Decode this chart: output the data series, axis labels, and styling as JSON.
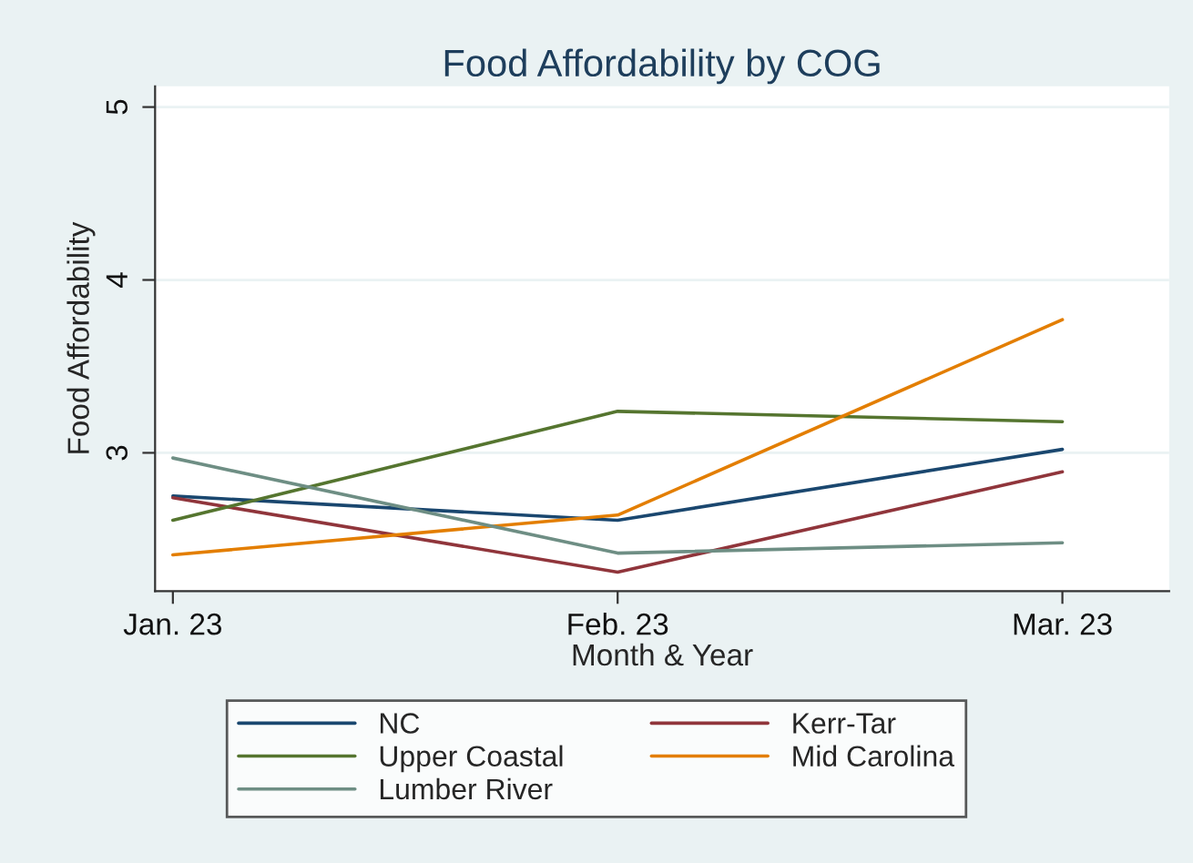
{
  "chart_data": {
    "type": "line",
    "title": "Food Affordability by COG",
    "xlabel": "Month & Year",
    "ylabel": "Food Affordability",
    "categories": [
      "Jan. 23",
      "Feb. 23",
      "Mar. 23"
    ],
    "series": [
      {
        "name": "NC",
        "color": "#1a476f",
        "values": [
          2.75,
          2.61,
          3.02
        ]
      },
      {
        "name": "Kerr-Tar",
        "color": "#90353b",
        "values": [
          2.74,
          2.31,
          2.89
        ]
      },
      {
        "name": "Upper Coastal",
        "color": "#55752f",
        "values": [
          2.61,
          3.24,
          3.18
        ]
      },
      {
        "name": "Mid Carolina",
        "color": "#e37e00",
        "values": [
          2.41,
          2.64,
          3.77
        ]
      },
      {
        "name": "Lumber River",
        "color": "#6e8e84",
        "values": [
          2.97,
          2.42,
          2.48
        ]
      }
    ],
    "ylim": [
      2.2,
      5.12
    ],
    "yticks": [
      3,
      4,
      5
    ],
    "grid": "y",
    "legend": "bottom",
    "marker": "none",
    "line_style": "solid"
  }
}
